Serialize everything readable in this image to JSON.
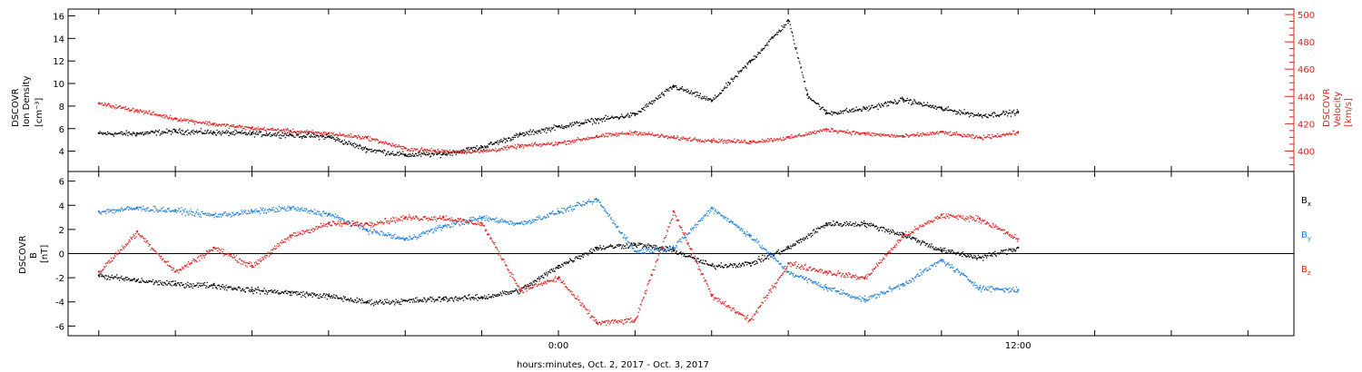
{
  "chart_data": [
    {
      "type": "scatter",
      "panel": "plasma",
      "left_axis": {
        "label": [
          "DSCOVR",
          "Ion Density",
          "[cm⁻³]"
        ],
        "ticks": [
          "4",
          "6",
          "8",
          "10",
          "12",
          "14",
          "16"
        ],
        "ylim": [
          2.2,
          16.6
        ]
      },
      "right_axis": {
        "label": [
          "DSCOVR",
          "Velocity",
          "[km/s]"
        ],
        "ticks": [
          "400",
          "420",
          "440",
          "460",
          "480",
          "500"
        ],
        "ylim": [
          385,
          504
        ],
        "color": "#e0201e"
      },
      "series": [
        {
          "axis": "left",
          "color": "#000000",
          "points": [
            [
              -12.0,
              5.6
            ],
            [
              -11.0,
              5.6
            ],
            [
              -10.0,
              5.8
            ],
            [
              -9.0,
              5.7
            ],
            [
              -8.0,
              5.6
            ],
            [
              -7.0,
              5.5
            ],
            [
              -6.0,
              5.3
            ],
            [
              -5.0,
              4.2
            ],
            [
              -4.0,
              3.7
            ],
            [
              -3.0,
              3.8
            ],
            [
              -2.0,
              4.4
            ],
            [
              -1.0,
              5.5
            ],
            [
              0.0,
              6.2
            ],
            [
              1.0,
              6.8
            ],
            [
              2.0,
              7.3
            ],
            [
              3.0,
              9.8
            ],
            [
              4.0,
              8.5
            ],
            [
              5.0,
              12.0
            ],
            [
              6.0,
              15.6
            ],
            [
              6.5,
              9.0
            ],
            [
              7.0,
              7.4
            ],
            [
              8.0,
              7.8
            ],
            [
              9.0,
              8.6
            ],
            [
              10.0,
              7.8
            ],
            [
              11.0,
              7.2
            ],
            [
              12.0,
              7.5
            ]
          ]
        },
        {
          "axis": "right",
          "color": "#e0201e",
          "points": [
            [
              -12.0,
              435
            ],
            [
              -11.0,
              430
            ],
            [
              -10.0,
              424
            ],
            [
              -9.0,
              420
            ],
            [
              -8.0,
              417
            ],
            [
              -7.0,
              415
            ],
            [
              -6.0,
              413
            ],
            [
              -5.0,
              410
            ],
            [
              -4.0,
              402
            ],
            [
              -3.0,
              400
            ],
            [
              -2.0,
              400
            ],
            [
              -1.0,
              404
            ],
            [
              0.0,
              406
            ],
            [
              1.0,
              411
            ],
            [
              2.0,
              414
            ],
            [
              3.0,
              410
            ],
            [
              4.0,
              408
            ],
            [
              5.0,
              407
            ],
            [
              6.0,
              410
            ],
            [
              7.0,
              416
            ],
            [
              8.0,
              413
            ],
            [
              9.0,
              411
            ],
            [
              10.0,
              414
            ],
            [
              11.0,
              410
            ],
            [
              12.0,
              414
            ]
          ]
        }
      ]
    },
    {
      "type": "scatter",
      "panel": "magnetic",
      "left_axis": {
        "label": [
          "DSCOVR",
          "B",
          "[nT]"
        ],
        "ticks": [
          "-6",
          "-4",
          "-2",
          "0",
          "2",
          "4",
          "6"
        ],
        "ylim": [
          -6.8,
          6.8
        ]
      },
      "zero_line": true,
      "legend_placement": "right",
      "series": [
        {
          "name": "Bx",
          "color": "#000000",
          "points": [
            [
              -12.0,
              -1.8
            ],
            [
              -11.0,
              -2.2
            ],
            [
              -10.0,
              -2.5
            ],
            [
              -9.0,
              -2.6
            ],
            [
              -8.0,
              -3.0
            ],
            [
              -7.0,
              -3.2
            ],
            [
              -6.0,
              -3.5
            ],
            [
              -5.0,
              -4.0
            ],
            [
              -4.0,
              -3.9
            ],
            [
              -3.0,
              -3.7
            ],
            [
              -2.0,
              -3.6
            ],
            [
              -1.0,
              -3.0
            ],
            [
              0.0,
              -1.0
            ],
            [
              1.0,
              0.5
            ],
            [
              2.0,
              0.8
            ],
            [
              3.0,
              0.3
            ],
            [
              4.0,
              -1.0
            ],
            [
              5.0,
              -0.8
            ],
            [
              6.0,
              0.5
            ],
            [
              7.0,
              2.5
            ],
            [
              8.0,
              2.5
            ],
            [
              9.0,
              1.6
            ],
            [
              10.0,
              0.3
            ],
            [
              11.0,
              -0.3
            ],
            [
              12.0,
              0.5
            ]
          ]
        },
        {
          "name": "By",
          "color": "#1f7fdc",
          "points": [
            [
              -12.0,
              3.5
            ],
            [
              -11.0,
              3.8
            ],
            [
              -10.0,
              3.6
            ],
            [
              -9.0,
              3.2
            ],
            [
              -8.0,
              3.5
            ],
            [
              -7.0,
              3.8
            ],
            [
              -6.0,
              3.3
            ],
            [
              -5.0,
              2.0
            ],
            [
              -4.0,
              1.2
            ],
            [
              -3.0,
              2.3
            ],
            [
              -2.0,
              3.0
            ],
            [
              -1.0,
              2.5
            ],
            [
              0.0,
              3.5
            ],
            [
              1.0,
              4.5
            ],
            [
              2.0,
              0.2
            ],
            [
              3.0,
              0.5
            ],
            [
              4.0,
              3.8
            ],
            [
              5.0,
              1.5
            ],
            [
              6.0,
              -1.5
            ],
            [
              7.0,
              -2.8
            ],
            [
              8.0,
              -3.8
            ],
            [
              9.0,
              -2.5
            ],
            [
              10.0,
              -0.5
            ],
            [
              11.0,
              -2.8
            ],
            [
              12.0,
              -3.0
            ]
          ]
        },
        {
          "name": "Bz",
          "color": "#e0201e",
          "points": [
            [
              -12.0,
              -1.5
            ],
            [
              -11.0,
              1.8
            ],
            [
              -10.0,
              -1.5
            ],
            [
              -9.0,
              0.5
            ],
            [
              -8.0,
              -1.0
            ],
            [
              -7.0,
              1.5
            ],
            [
              -6.0,
              2.5
            ],
            [
              -5.0,
              2.5
            ],
            [
              -4.0,
              3.0
            ],
            [
              -3.0,
              3.0
            ],
            [
              -2.0,
              2.5
            ],
            [
              -1.0,
              -3.0
            ],
            [
              0.0,
              -2.0
            ],
            [
              1.0,
              -5.7
            ],
            [
              2.0,
              -5.5
            ],
            [
              3.0,
              3.5
            ],
            [
              4.0,
              -3.5
            ],
            [
              5.0,
              -5.5
            ],
            [
              6.0,
              -0.8
            ],
            [
              7.0,
              -1.5
            ],
            [
              8.0,
              -2.0
            ],
            [
              9.0,
              1.5
            ],
            [
              10.0,
              3.2
            ],
            [
              11.0,
              2.9
            ],
            [
              12.0,
              1.2
            ]
          ]
        }
      ]
    }
  ],
  "x_axis": {
    "label": "hours:minutes, Oct.  2, 2017 - Oct.  3, 2017",
    "tick_labels": [
      {
        "t": 0,
        "label": "0:00"
      },
      {
        "t": 12,
        "label": "12:00"
      }
    ],
    "minor_tick_hours": 2,
    "xlim": [
      -12.8,
      19.2
    ]
  },
  "legend": {
    "bx": {
      "main": "B",
      "sub": "x",
      "color": "#000000"
    },
    "by": {
      "main": "B",
      "sub": "y",
      "color": "#1f7fdc"
    },
    "bz": {
      "main": "B",
      "sub": "z",
      "color": "#e0201e"
    }
  }
}
